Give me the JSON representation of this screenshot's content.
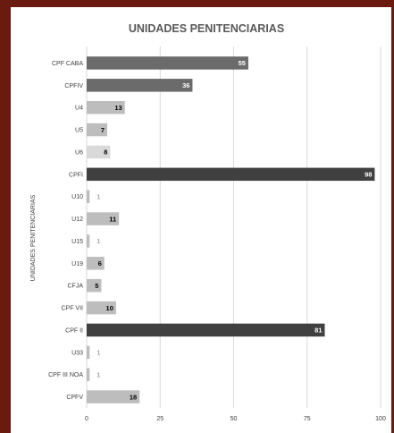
{
  "chart_data": {
    "type": "bar",
    "orientation": "horizontal",
    "title": "UNIDADES PENITENCIARIAS",
    "ylabel": "UNIDADES PENITENCIARIAS",
    "xlabel": "",
    "xlim": [
      0,
      100
    ],
    "xticks": [
      0,
      25,
      50,
      75,
      100
    ],
    "grid": true,
    "legend": "none",
    "categories": [
      "CPF CABA",
      "CPFIV",
      "U4",
      "U5",
      "U6",
      "CPFI",
      "U10",
      "U12",
      "U15",
      "U19",
      "CFJA",
      "CPF VII",
      "CPF II",
      "U33",
      "CPF III NOA",
      "CPFV"
    ],
    "values": [
      55,
      36,
      13,
      7,
      8,
      98,
      1,
      11,
      1,
      6,
      5,
      10,
      81,
      1,
      1,
      18
    ],
    "colors": {
      "dark": "#404040",
      "medium": "#6b6b6b",
      "light": "#bdbdbd",
      "lighter": "#d9d9d9",
      "label_light": "#ffffff",
      "label_dark": "#000000",
      "label_faint": "#a6a6a6"
    }
  }
}
